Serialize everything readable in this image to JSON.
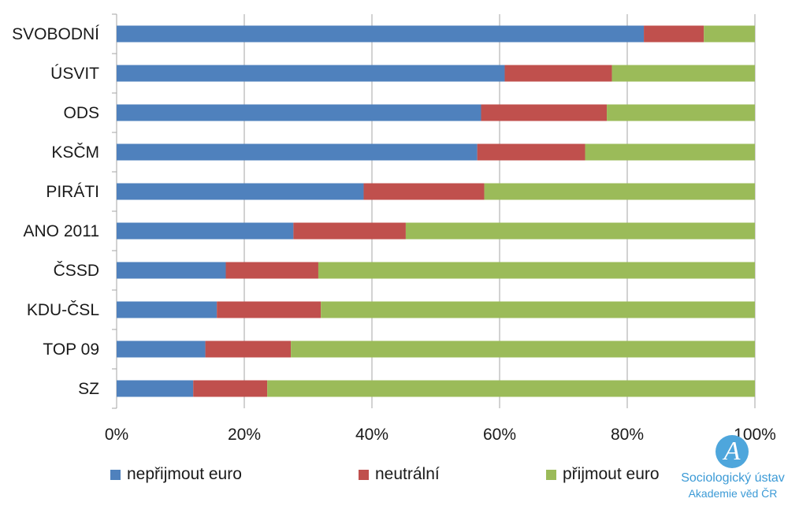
{
  "chart_data": {
    "type": "bar",
    "orientation": "horizontal",
    "stacked": "percent",
    "categories": [
      "SVOBODNÍ",
      "ÚSVIT",
      "ODS",
      "KSČM",
      "PIRÁTI",
      "ANO 2011",
      "ČSSD",
      "KDU-ČSL",
      "TOP 09",
      "SZ"
    ],
    "series": [
      {
        "name": "nepřijmout euro",
        "color": "#4f81bd",
        "values": [
          82.6,
          60.8,
          57.1,
          56.5,
          38.7,
          27.7,
          17.1,
          15.7,
          13.9,
          12.0
        ]
      },
      {
        "name": "neutrální",
        "color": "#c0504d",
        "values": [
          9.4,
          16.8,
          19.7,
          16.9,
          18.9,
          17.6,
          14.5,
          16.3,
          13.4,
          11.6
        ]
      },
      {
        "name": "přijmout euro",
        "color": "#9bbb59",
        "values": [
          8.0,
          22.4,
          23.2,
          26.6,
          42.4,
          54.7,
          68.4,
          68.0,
          72.7,
          76.4
        ]
      }
    ],
    "xlim": [
      0,
      100
    ],
    "x_ticks": [
      "0%",
      "20%",
      "40%",
      "60%",
      "80%",
      "100%"
    ],
    "grid": true,
    "legend_position": "bottom"
  },
  "branding": {
    "logo_letter": "A",
    "name": "Sociologický ústav",
    "subtitle": "Akademie věd ČR"
  }
}
